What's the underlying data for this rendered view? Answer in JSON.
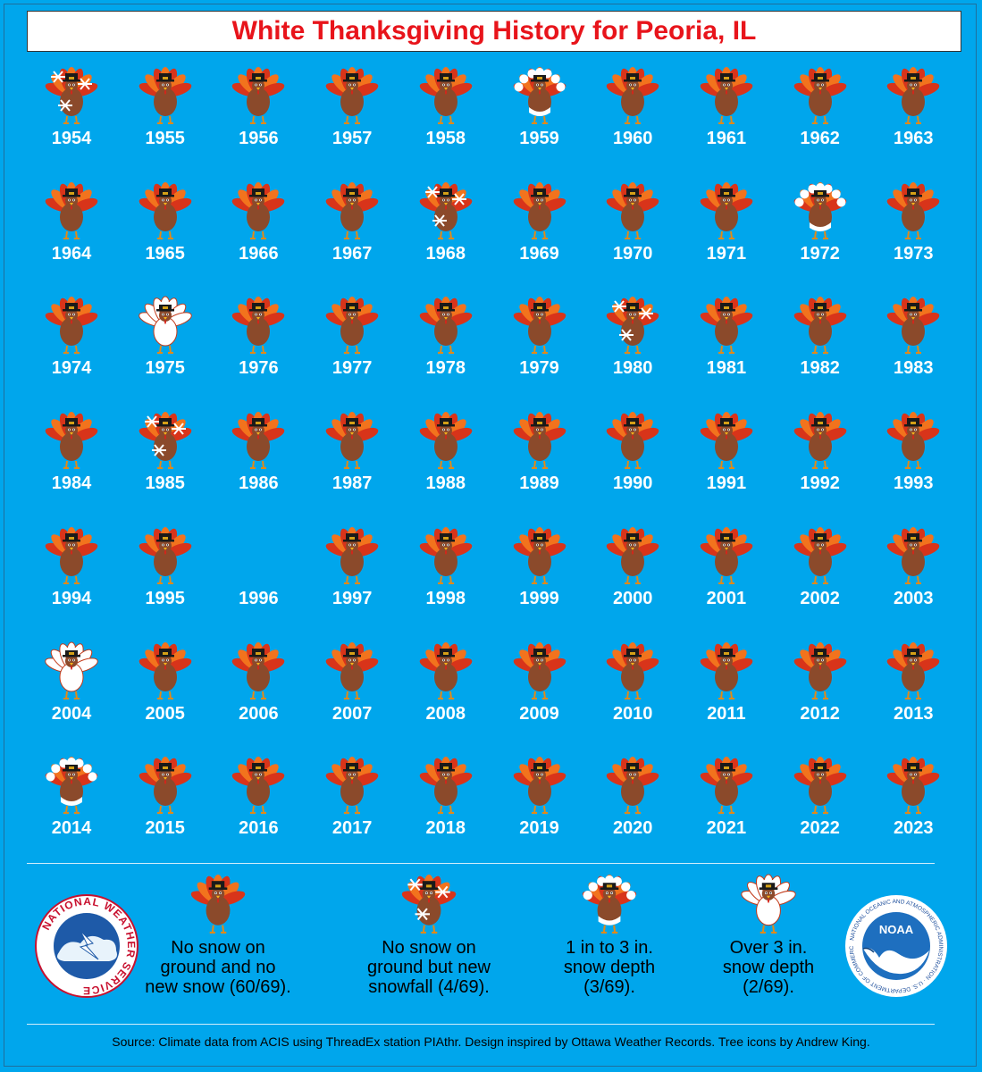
{
  "title": "White Thanksgiving History for Peoria, IL",
  "colors": {
    "background": "#00a6ec",
    "title_text": "#e8141b",
    "turkey_body": "#8b4a2b",
    "feather_red": "#d8341a",
    "feather_orange": "#f2731d",
    "snow": "#ffffff"
  },
  "chart_data": {
    "type": "table",
    "categories": {
      "none": "No snow on ground and no new snow (60/69).",
      "snowfall": "No snow on ground but new snowfall (4/69).",
      "light": "1 in to 3 in. snow depth (3/69).",
      "deep": "Over 3 in. snow depth (2/69)."
    },
    "counts": {
      "none": 60,
      "snowfall": 4,
      "light": 3,
      "deep": 2
    },
    "years": [
      {
        "year": "1954",
        "category": "snowfall"
      },
      {
        "year": "1955",
        "category": "none"
      },
      {
        "year": "1956",
        "category": "none"
      },
      {
        "year": "1957",
        "category": "none"
      },
      {
        "year": "1958",
        "category": "none"
      },
      {
        "year": "1959",
        "category": "light"
      },
      {
        "year": "1960",
        "category": "none"
      },
      {
        "year": "1961",
        "category": "none"
      },
      {
        "year": "1962",
        "category": "none"
      },
      {
        "year": "1963",
        "category": "none"
      },
      {
        "year": "1964",
        "category": "none"
      },
      {
        "year": "1965",
        "category": "none"
      },
      {
        "year": "1966",
        "category": "none"
      },
      {
        "year": "1967",
        "category": "none"
      },
      {
        "year": "1968",
        "category": "snowfall"
      },
      {
        "year": "1969",
        "category": "none"
      },
      {
        "year": "1970",
        "category": "none"
      },
      {
        "year": "1971",
        "category": "none"
      },
      {
        "year": "1972",
        "category": "light"
      },
      {
        "year": "1973",
        "category": "none"
      },
      {
        "year": "1974",
        "category": "none"
      },
      {
        "year": "1975",
        "category": "deep"
      },
      {
        "year": "1976",
        "category": "none"
      },
      {
        "year": "1977",
        "category": "none"
      },
      {
        "year": "1978",
        "category": "none"
      },
      {
        "year": "1979",
        "category": "none"
      },
      {
        "year": "1980",
        "category": "snowfall"
      },
      {
        "year": "1981",
        "category": "none"
      },
      {
        "year": "1982",
        "category": "none"
      },
      {
        "year": "1983",
        "category": "none"
      },
      {
        "year": "1984",
        "category": "none"
      },
      {
        "year": "1985",
        "category": "snowfall"
      },
      {
        "year": "1986",
        "category": "none"
      },
      {
        "year": "1987",
        "category": "none"
      },
      {
        "year": "1988",
        "category": "none"
      },
      {
        "year": "1989",
        "category": "none"
      },
      {
        "year": "1990",
        "category": "none"
      },
      {
        "year": "1991",
        "category": "none"
      },
      {
        "year": "1992",
        "category": "none"
      },
      {
        "year": "1993",
        "category": "none"
      },
      {
        "year": "1994",
        "category": "none"
      },
      {
        "year": "1995",
        "category": "none"
      },
      {
        "year": "1996",
        "category": "missing"
      },
      {
        "year": "1997",
        "category": "none"
      },
      {
        "year": "1998",
        "category": "none"
      },
      {
        "year": "1999",
        "category": "none"
      },
      {
        "year": "2000",
        "category": "none"
      },
      {
        "year": "2001",
        "category": "none"
      },
      {
        "year": "2002",
        "category": "none"
      },
      {
        "year": "2003",
        "category": "none"
      },
      {
        "year": "2004",
        "category": "deep"
      },
      {
        "year": "2005",
        "category": "none"
      },
      {
        "year": "2006",
        "category": "none"
      },
      {
        "year": "2007",
        "category": "none"
      },
      {
        "year": "2008",
        "category": "none"
      },
      {
        "year": "2009",
        "category": "none"
      },
      {
        "year": "2010",
        "category": "none"
      },
      {
        "year": "2011",
        "category": "none"
      },
      {
        "year": "2012",
        "category": "none"
      },
      {
        "year": "2013",
        "category": "none"
      },
      {
        "year": "2014",
        "category": "light"
      },
      {
        "year": "2015",
        "category": "none"
      },
      {
        "year": "2016",
        "category": "none"
      },
      {
        "year": "2017",
        "category": "none"
      },
      {
        "year": "2018",
        "category": "none"
      },
      {
        "year": "2019",
        "category": "none"
      },
      {
        "year": "2020",
        "category": "none"
      },
      {
        "year": "2021",
        "category": "none"
      },
      {
        "year": "2022",
        "category": "none"
      },
      {
        "year": "2023",
        "category": "none"
      }
    ]
  },
  "legend": [
    {
      "key": "none",
      "label_lines": [
        "No snow on",
        "ground and no",
        "new snow (60/69)."
      ]
    },
    {
      "key": "snowfall",
      "label_lines": [
        "No snow on",
        "ground but new",
        "snowfall (4/69)."
      ]
    },
    {
      "key": "light",
      "label_lines": [
        "1 in to 3 in.",
        "snow depth",
        "(3/69)."
      ]
    },
    {
      "key": "deep",
      "label_lines": [
        "Over 3 in.",
        "snow depth",
        "(2/69)."
      ]
    }
  ],
  "logos": {
    "nws_text": "NATIONAL WEATHER SERVICE",
    "noaa_text": "NOAA",
    "noaa_ring_text": "NATIONAL OCEANIC AND ATMOSPHERIC ADMINISTRATION · U.S. DEPARTMENT OF COMMERCE"
  },
  "source": "Source: Climate data from ACIS using ThreadEx station PIAthr. Design inspired by Ottawa Weather Records. Tree icons by Andrew King."
}
